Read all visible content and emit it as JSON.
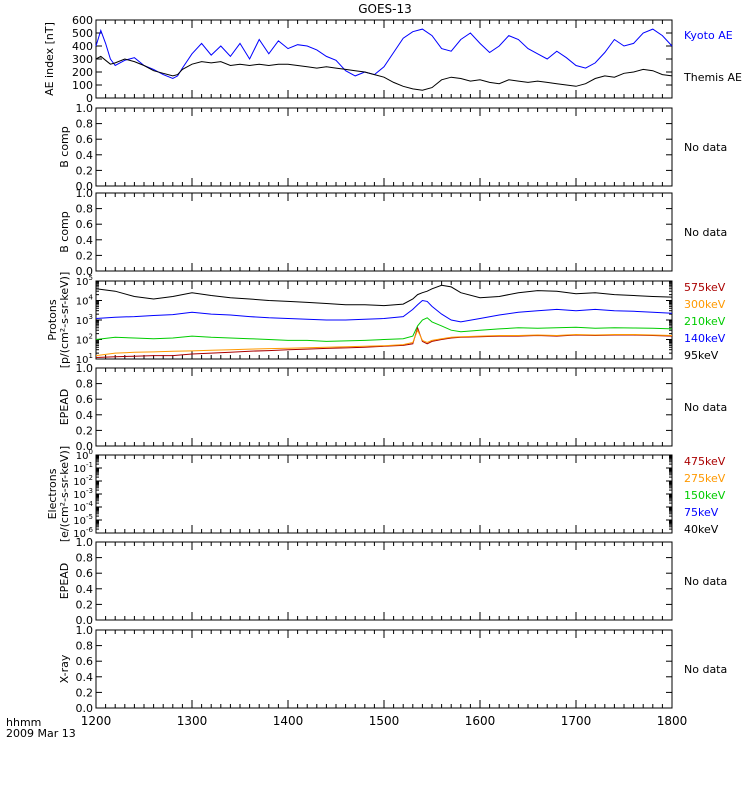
{
  "title": "GOES-13",
  "time_axis": {
    "ticks": [
      "1200",
      "1300",
      "1400",
      "1500",
      "1600",
      "1700",
      "1800"
    ],
    "label": "hhmm",
    "date": "2009 Mar 13",
    "range": [
      1200,
      1800
    ]
  },
  "colors": {
    "kyoto": "#0000ff",
    "themis": "#000000",
    "e575": "#aa0000",
    "e300": "#ff9900",
    "e210": "#00cc00",
    "e140": "#0000ff",
    "e95": "#000000"
  },
  "chart_data": [
    {
      "type": "line",
      "ylabel": "AE index [nT]",
      "ylim": [
        0,
        600
      ],
      "yticks": [
        "0",
        "100",
        "200",
        "300",
        "400",
        "500",
        "600"
      ],
      "x": [
        1200,
        1205,
        1210,
        1215,
        1220,
        1230,
        1240,
        1250,
        1260,
        1270,
        1280,
        1285,
        1290,
        1300,
        1310,
        1320,
        1330,
        1340,
        1350,
        1360,
        1370,
        1380,
        1390,
        1400,
        1410,
        1420,
        1430,
        1440,
        1450,
        1460,
        1470,
        1480,
        1490,
        1500,
        1510,
        1520,
        1530,
        1540,
        1550,
        1560,
        1570,
        1580,
        1590,
        1600,
        1610,
        1620,
        1630,
        1640,
        1650,
        1660,
        1670,
        1680,
        1690,
        1700,
        1710,
        1720,
        1730,
        1740,
        1750,
        1760,
        1770,
        1780,
        1790,
        1800
      ],
      "series": [
        {
          "name": "Kyoto AE",
          "color_key": "kyoto",
          "values": [
            400,
            520,
            420,
            300,
            250,
            290,
            310,
            250,
            220,
            180,
            150,
            170,
            230,
            340,
            420,
            330,
            400,
            320,
            420,
            300,
            450,
            340,
            440,
            380,
            410,
            400,
            370,
            320,
            290,
            210,
            170,
            200,
            180,
            240,
            350,
            460,
            510,
            530,
            480,
            380,
            360,
            450,
            500,
            420,
            350,
            400,
            480,
            450,
            380,
            340,
            300,
            360,
            310,
            250,
            230,
            270,
            350,
            450,
            400,
            420,
            500,
            530,
            480,
            400
          ]
        },
        {
          "name": "Themis AE",
          "color_key": "themis",
          "values": [
            300,
            320,
            290,
            260,
            270,
            300,
            280,
            250,
            210,
            190,
            170,
            180,
            220,
            260,
            280,
            270,
            280,
            250,
            260,
            250,
            260,
            250,
            260,
            260,
            250,
            240,
            230,
            240,
            230,
            220,
            210,
            200,
            180,
            160,
            120,
            90,
            70,
            60,
            80,
            140,
            160,
            150,
            130,
            140,
            120,
            110,
            140,
            130,
            120,
            130,
            120,
            110,
            100,
            90,
            110,
            150,
            170,
            160,
            190,
            200,
            220,
            210,
            180,
            170
          ]
        }
      ]
    },
    {
      "type": "line",
      "ylabel": "B comp",
      "ylim": [
        0,
        1
      ],
      "yticks": [
        "0.0",
        "0.2",
        "0.4",
        "0.6",
        "0.8",
        "1.0"
      ],
      "note": "No data"
    },
    {
      "type": "line",
      "ylabel": "B comp",
      "ylim": [
        0,
        1
      ],
      "yticks": [
        "0.0",
        "0.2",
        "0.4",
        "0.6",
        "0.8",
        "1.0"
      ],
      "note": "No data"
    },
    {
      "type": "line",
      "scale": "log",
      "ylabel_lines": [
        "Protons",
        "[p/(cm²-s-sr-keV)]"
      ],
      "ylim": [
        10,
        100000
      ],
      "yticks": [
        {
          "b": "10",
          "e": "1"
        },
        {
          "b": "10",
          "e": "2"
        },
        {
          "b": "10",
          "e": "3"
        },
        {
          "b": "10",
          "e": "4"
        },
        {
          "b": "10",
          "e": "5"
        }
      ],
      "x": [
        1200,
        1220,
        1240,
        1260,
        1280,
        1300,
        1320,
        1340,
        1360,
        1380,
        1400,
        1420,
        1440,
        1460,
        1480,
        1500,
        1520,
        1530,
        1535,
        1540,
        1545,
        1550,
        1560,
        1570,
        1580,
        1600,
        1620,
        1640,
        1660,
        1680,
        1700,
        1720,
        1740,
        1760,
        1780,
        1800
      ],
      "series": [
        {
          "name": "575keV",
          "color_key": "e575",
          "values": [
            12,
            13,
            14,
            15,
            15,
            18,
            20,
            22,
            25,
            27,
            30,
            32,
            35,
            37,
            40,
            45,
            50,
            60,
            400,
            80,
            60,
            80,
            100,
            120,
            130,
            140,
            150,
            150,
            160,
            150,
            170,
            160,
            170,
            170,
            160,
            150
          ]
        },
        {
          "name": "300keV",
          "color_key": "e300",
          "values": [
            15,
            20,
            22,
            23,
            25,
            26,
            28,
            30,
            32,
            34,
            36,
            38,
            40,
            42,
            45,
            48,
            55,
            70,
            300,
            90,
            70,
            90,
            110,
            130,
            140,
            150,
            160,
            160,
            170,
            160,
            180,
            170,
            180,
            180,
            170,
            160
          ]
        },
        {
          "name": "210keV",
          "color_key": "e210",
          "values": [
            100,
            130,
            120,
            110,
            120,
            150,
            130,
            120,
            110,
            100,
            90,
            90,
            80,
            85,
            90,
            100,
            110,
            150,
            500,
            1000,
            1300,
            800,
            500,
            300,
            250,
            300,
            350,
            400,
            380,
            400,
            420,
            380,
            400,
            390,
            380,
            350
          ]
        },
        {
          "name": "140keV",
          "color_key": "e140",
          "values": [
            1200,
            1400,
            1500,
            1700,
            1900,
            2500,
            2000,
            1800,
            1500,
            1300,
            1200,
            1100,
            1000,
            1000,
            1100,
            1200,
            1500,
            3500,
            6000,
            10000,
            9000,
            5000,
            2000,
            1000,
            800,
            1200,
            1800,
            2500,
            3000,
            3500,
            3000,
            3500,
            3000,
            2800,
            2500,
            2200
          ]
        },
        {
          "name": "95keV",
          "color_key": "e95",
          "values": [
            40000,
            30000,
            16000,
            12000,
            16000,
            25000,
            18000,
            14000,
            12000,
            10000,
            9000,
            8000,
            7000,
            6000,
            6000,
            5500,
            6500,
            12000,
            20000,
            25000,
            30000,
            40000,
            60000,
            50000,
            25000,
            14000,
            16000,
            25000,
            32000,
            30000,
            22000,
            25000,
            20000,
            18000,
            16000,
            15000
          ]
        }
      ]
    },
    {
      "type": "line",
      "ylabel": "EPEAD",
      "ylim": [
        0,
        1
      ],
      "yticks": [
        "0.0",
        "0.2",
        "0.4",
        "0.6",
        "0.8",
        "1.0"
      ],
      "note": "No data"
    },
    {
      "type": "line",
      "scale": "log",
      "ylabel_lines": [
        "Electrons",
        "[e/(cm²-s-sr-keV)]"
      ],
      "ylim": [
        1e-06,
        1
      ],
      "yticks": [
        {
          "b": "10",
          "e": "-6"
        },
        {
          "b": "10",
          "e": "-5"
        },
        {
          "b": "10",
          "e": "-4"
        },
        {
          "b": "10",
          "e": "-3"
        },
        {
          "b": "10",
          "e": "-2"
        },
        {
          "b": "10",
          "e": "-1"
        },
        {
          "b": "10",
          "e": "0"
        }
      ],
      "legend": [
        {
          "name": "475keV",
          "color_key": "e575"
        },
        {
          "name": "275keV",
          "color_key": "e300"
        },
        {
          "name": "150keV",
          "color_key": "e210"
        },
        {
          "name": "75keV",
          "color_key": "e140"
        },
        {
          "name": "40keV",
          "color_key": "e95"
        }
      ]
    },
    {
      "type": "line",
      "ylabel": "EPEAD",
      "ylim": [
        0,
        1
      ],
      "yticks": [
        "0.0",
        "0.2",
        "0.4",
        "0.6",
        "0.8",
        "1.0"
      ],
      "note": "No data"
    },
    {
      "type": "line",
      "ylabel": "X-ray",
      "ylim": [
        0,
        1
      ],
      "yticks": [
        "0.0",
        "0.2",
        "0.4",
        "0.6",
        "0.8",
        "1.0"
      ],
      "note": "No data"
    }
  ]
}
